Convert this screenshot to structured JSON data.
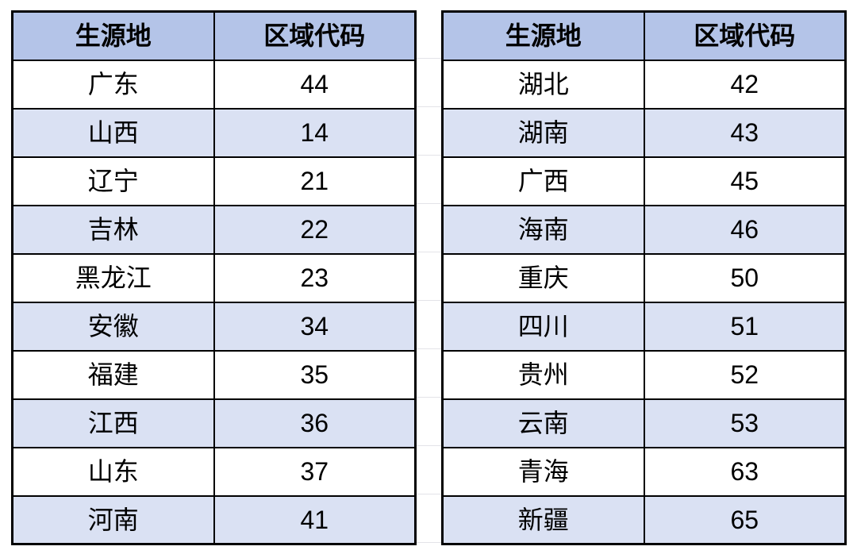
{
  "colors": {
    "header_bg": "#b4c4e8",
    "alt_row_bg": "#dae1f3",
    "row_bg": "#ffffff",
    "border": "#000000",
    "gridline": "#e3e3e8",
    "text": "#000000",
    "page_bg": "#ffffff"
  },
  "chart_data": [
    {
      "type": "table",
      "title": "",
      "columns": [
        "生源地",
        "区域代码"
      ],
      "rows": [
        [
          "广东",
          "44"
        ],
        [
          "山西",
          "14"
        ],
        [
          "辽宁",
          "21"
        ],
        [
          "吉林",
          "22"
        ],
        [
          "黑龙江",
          "23"
        ],
        [
          "安徽",
          "34"
        ],
        [
          "福建",
          "35"
        ],
        [
          "江西",
          "36"
        ],
        [
          "山东",
          "37"
        ],
        [
          "河南",
          "41"
        ]
      ]
    },
    {
      "type": "table",
      "title": "",
      "columns": [
        "生源地",
        "区域代码"
      ],
      "rows": [
        [
          "湖北",
          "42"
        ],
        [
          "湖南",
          "43"
        ],
        [
          "广西",
          "45"
        ],
        [
          "海南",
          "46"
        ],
        [
          "重庆",
          "50"
        ],
        [
          "四川",
          "51"
        ],
        [
          "贵州",
          "52"
        ],
        [
          "云南",
          "53"
        ],
        [
          "青海",
          "63"
        ],
        [
          "新疆",
          "65"
        ]
      ]
    }
  ]
}
